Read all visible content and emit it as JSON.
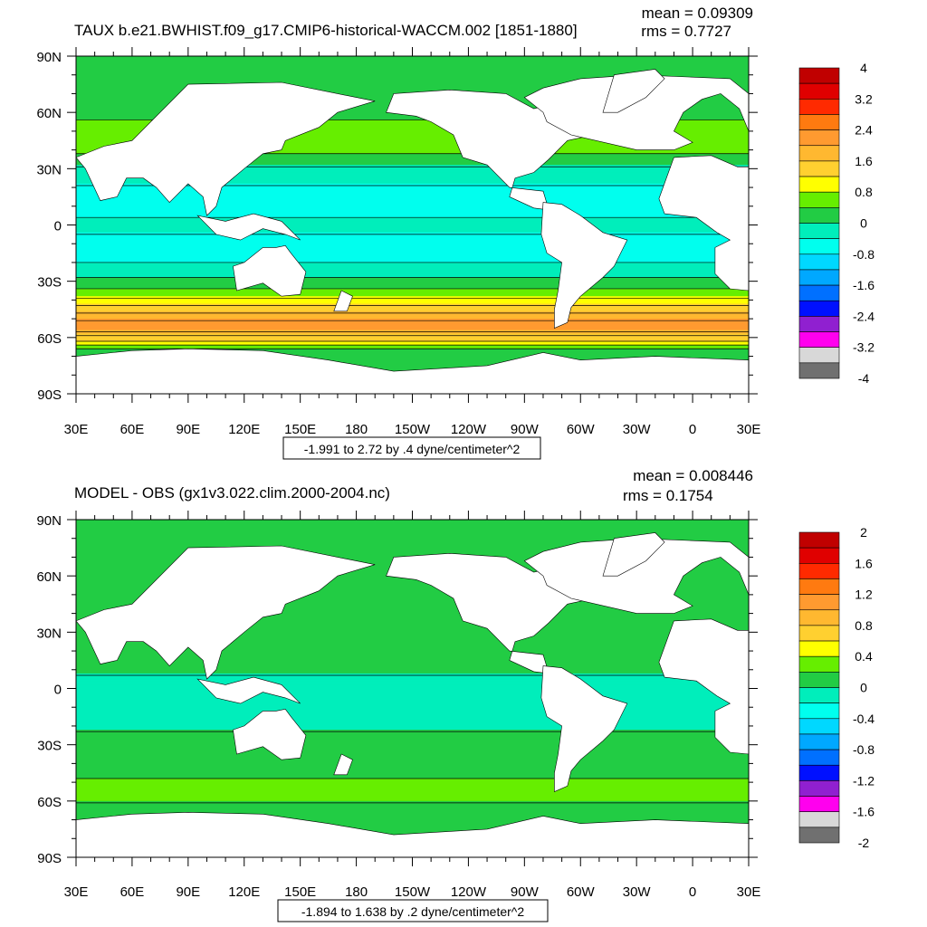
{
  "chart_data": [
    {
      "type": "heatmap",
      "title": "TAUX b.e21.BWHIST.f09_g17.CMIP6-historical-WACCM.002 [1851-1880]",
      "stats": {
        "mean": "mean = 0.09309",
        "rms": "rms = 0.7727"
      },
      "contour_info": "-1.991 to 2.72 by .4 dyne/centimeter^2",
      "x_ticks": [
        "30E",
        "60E",
        "90E",
        "120E",
        "150E",
        "180",
        "150W",
        "120W",
        "90W",
        "60W",
        "30W",
        "0",
        "30E"
      ],
      "y_ticks": [
        "90N",
        "60N",
        "30N",
        "0",
        "30S",
        "60S",
        "90S"
      ],
      "xlim": [
        30,
        390
      ],
      "ylim": [
        -90,
        90
      ],
      "colorbar": {
        "labels": [
          "4",
          "3.2",
          "2.4",
          "1.6",
          "0.8",
          "0",
          "-0.8",
          "-1.6",
          "-2.4",
          "-3.2",
          "-4"
        ],
        "colors": [
          "#c00000",
          "#e00000",
          "#ff2a00",
          "#ff7a10",
          "#ff9a30",
          "#ffb830",
          "#ffd030",
          "#ffff00",
          "#66ee00",
          "#22cc44",
          "#00eebb",
          "#00ffee",
          "#00d8ff",
          "#00a8ff",
          "#0070ff",
          "#0010ff",
          "#9020d0",
          "#ff00ee",
          "#d8d8d8",
          "#707070"
        ]
      },
      "field": {
        "zonal_means": [
          {
            "lat": 80,
            "value": 0.1
          },
          {
            "lat": 60,
            "value": 0.3
          },
          {
            "lat": 45,
            "value": 0.8
          },
          {
            "lat": 30,
            "value": -0.1
          },
          {
            "lat": 15,
            "value": -0.6
          },
          {
            "lat": 0,
            "value": -0.3
          },
          {
            "lat": -15,
            "value": -0.6
          },
          {
            "lat": -30,
            "value": 0.1
          },
          {
            "lat": -40,
            "value": 0.9
          },
          {
            "lat": -50,
            "value": 2.0
          },
          {
            "lat": -55,
            "value": 2.2
          },
          {
            "lat": -60,
            "value": 1.4
          },
          {
            "lat": -67,
            "value": 0.2
          }
        ]
      }
    },
    {
      "type": "heatmap",
      "title": "MODEL - OBS (gx1v3.022.clim.2000-2004.nc)",
      "stats": {
        "mean": "mean = 0.008446",
        "rms": "rms = 0.1754"
      },
      "contour_info": "-1.894 to 1.638 by .2 dyne/centimeter^2",
      "x_ticks": [
        "30E",
        "60E",
        "90E",
        "120E",
        "150E",
        "180",
        "150W",
        "120W",
        "90W",
        "60W",
        "30W",
        "0",
        "30E"
      ],
      "y_ticks": [
        "90N",
        "60N",
        "30N",
        "0",
        "30S",
        "60S",
        "90S"
      ],
      "xlim": [
        30,
        390
      ],
      "ylim": [
        -90,
        90
      ],
      "colorbar": {
        "labels": [
          "2",
          "1.6",
          "1.2",
          "0.8",
          "0.4",
          "0",
          "-0.4",
          "-0.8",
          "-1.2",
          "-1.6",
          "-2"
        ],
        "colors": [
          "#c00000",
          "#e00000",
          "#ff2a00",
          "#ff7a10",
          "#ff9a30",
          "#ffb830",
          "#ffd030",
          "#ffff00",
          "#66ee00",
          "#22cc44",
          "#00eebb",
          "#00ffee",
          "#00d8ff",
          "#00a8ff",
          "#0070ff",
          "#0010ff",
          "#9020d0",
          "#ff00ee",
          "#d8d8d8",
          "#707070"
        ]
      },
      "field": {
        "zonal_means": [
          {
            "lat": 80,
            "value": 0.05
          },
          {
            "lat": 60,
            "value": 0.05
          },
          {
            "lat": 45,
            "value": 0.05
          },
          {
            "lat": 30,
            "value": 0.05
          },
          {
            "lat": 15,
            "value": 0.05
          },
          {
            "lat": 0,
            "value": -0.05
          },
          {
            "lat": -15,
            "value": -0.05
          },
          {
            "lat": -30,
            "value": 0.05
          },
          {
            "lat": -45,
            "value": 0.1
          },
          {
            "lat": -52,
            "value": 0.35
          },
          {
            "lat": -58,
            "value": 0.3
          },
          {
            "lat": -65,
            "value": 0.05
          }
        ]
      }
    }
  ]
}
